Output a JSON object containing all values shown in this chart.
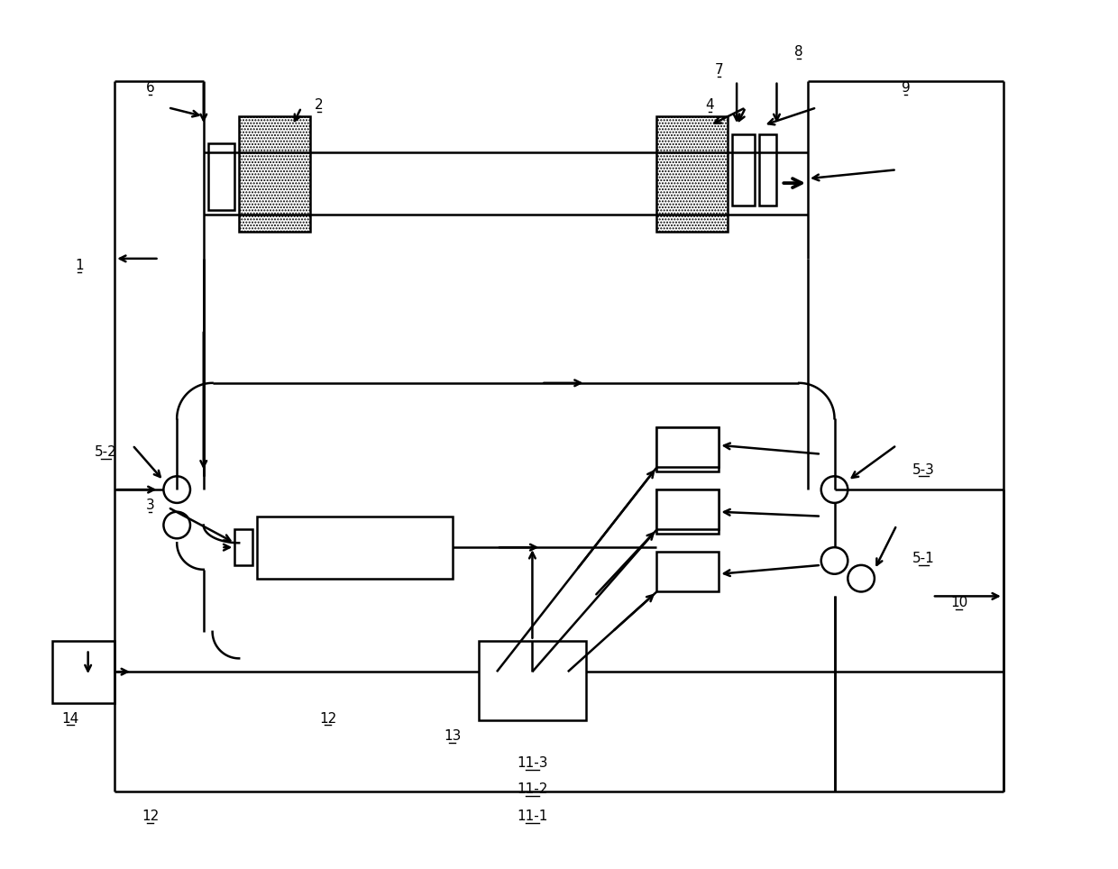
{
  "bg_color": "#ffffff",
  "lc": "#000000",
  "lw": 1.8,
  "fig_w": 12.4,
  "fig_h": 9.64,
  "dpi": 100
}
